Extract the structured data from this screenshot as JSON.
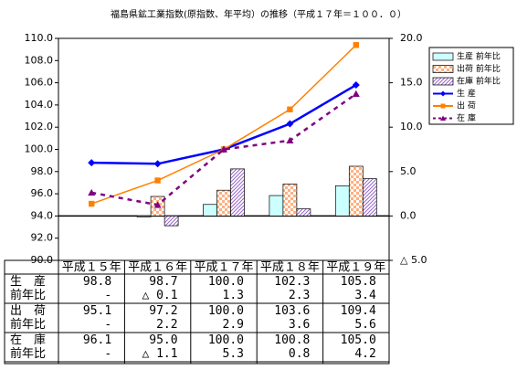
{
  "chart_data": {
    "type": "combo",
    "title": "福島県鉱工業指数(原指数、年平均）の推移（平成１７年＝１００．０）",
    "categories": [
      "平成１５年",
      "平成１６年",
      "平成１７年",
      "平成１８年",
      "平成１９年"
    ],
    "ylim": [
      90,
      110
    ],
    "yticks": [
      {
        "value": 90,
        "label": "90.0"
      },
      {
        "value": 92,
        "label": "92.0"
      },
      {
        "value": 94,
        "label": "94.0"
      },
      {
        "value": 96,
        "label": "96.0"
      },
      {
        "value": 98,
        "label": "98.0"
      },
      {
        "value": 100,
        "label": "100.0"
      },
      {
        "value": 102,
        "label": "102.0"
      },
      {
        "value": 104,
        "label": "104.0"
      },
      {
        "value": 106,
        "label": "106.0"
      },
      {
        "value": 108,
        "label": "108.0"
      },
      {
        "value": 110,
        "label": "110.0"
      }
    ],
    "y2lim": [
      -5,
      20
    ],
    "y2ticks": [
      {
        "value": -5,
        "label": "△ 5.0"
      },
      {
        "value": 0,
        "label": "0.0"
      },
      {
        "value": 5,
        "label": "5.0"
      },
      {
        "value": 10,
        "label": "10.0"
      },
      {
        "value": 15,
        "label": "15.0"
      },
      {
        "value": 20,
        "label": "20.0"
      }
    ],
    "grid": false,
    "legend": "right",
    "series": [
      {
        "name": "生 産",
        "type": "line",
        "axis": "y",
        "color": "#0000ff",
        "marker": "diamond",
        "dash": false,
        "values": [
          98.8,
          98.7,
          100.0,
          102.3,
          105.8
        ],
        "value_labels": [
          "98.8",
          "98.7",
          "100.0",
          "102.3",
          "105.8"
        ]
      },
      {
        "name": "出 荷",
        "type": "line",
        "axis": "y",
        "color": "#ff8000",
        "marker": "square",
        "dash": false,
        "values": [
          95.1,
          97.2,
          100.0,
          103.6,
          109.4
        ],
        "value_labels": [
          "95.1",
          "97.2",
          "100.0",
          "103.6",
          "109.4"
        ]
      },
      {
        "name": "在 庫",
        "type": "line",
        "axis": "y",
        "color": "#800080",
        "marker": "triangle",
        "dash": true,
        "values": [
          96.1,
          95.0,
          100.0,
          100.8,
          105.0
        ],
        "value_labels": [
          "96.1",
          "95.0",
          "100.0",
          "100.8",
          "105.0"
        ]
      },
      {
        "name": "生産 前年比",
        "type": "bar",
        "axis": "y2",
        "color": "#ccffff",
        "pattern": "solid",
        "values": [
          null,
          -0.1,
          1.3,
          2.3,
          3.4
        ],
        "value_labels": [
          "-",
          "△ 0.1",
          "1.3",
          "2.3",
          "3.4"
        ]
      },
      {
        "name": "出荷 前年比",
        "type": "bar",
        "axis": "y2",
        "color": "#ff9966",
        "pattern": "checker",
        "values": [
          null,
          2.2,
          2.9,
          3.6,
          5.6
        ],
        "value_labels": [
          "-",
          "2.2",
          "2.9",
          "3.6",
          "5.6"
        ]
      },
      {
        "name": "在庫 前年比",
        "type": "bar",
        "axis": "y2",
        "color": "#9966cc",
        "pattern": "hatch",
        "values": [
          null,
          -1.1,
          5.3,
          0.8,
          4.2
        ],
        "value_labels": [
          "-",
          "△ 1.1",
          "5.3",
          "0.8",
          "4.2"
        ]
      }
    ],
    "table_rows": [
      {
        "label": [
          "生　産",
          "前年比"
        ],
        "series": [
          0,
          3
        ]
      },
      {
        "label": [
          "出　荷",
          "前年比"
        ],
        "series": [
          1,
          4
        ]
      },
      {
        "label": [
          "在　庫",
          "前年比"
        ],
        "series": [
          2,
          5
        ]
      }
    ]
  }
}
